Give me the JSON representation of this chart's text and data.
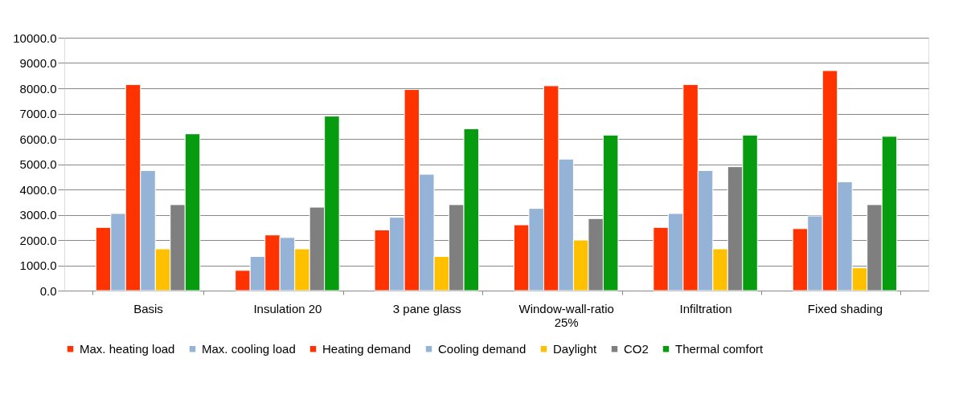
{
  "chart_data": {
    "type": "bar",
    "categories": [
      "Basis",
      "Insulation 20",
      "3 pane glass",
      "Window-wall-ratio 25%",
      "Infiltration",
      "Fixed shading"
    ],
    "series": [
      {
        "name": "Max. heating load",
        "color": "#ff3300",
        "values": [
          2500,
          800,
          2400,
          2600,
          2500,
          2450
        ]
      },
      {
        "name": "Max. cooling load",
        "color": "#95b3d7",
        "values": [
          3050,
          1350,
          2900,
          3250,
          3050,
          2950
        ]
      },
      {
        "name": "Heating demand",
        "color": "#ff3300",
        "values": [
          8150,
          2200,
          7950,
          8100,
          8150,
          8700
        ]
      },
      {
        "name": "Cooling demand",
        "color": "#95b3d7",
        "values": [
          4750,
          2100,
          4600,
          5200,
          4750,
          4300
        ]
      },
      {
        "name": "Daylight",
        "color": "#ffc000",
        "values": [
          1650,
          1650,
          1350,
          2000,
          1650,
          900
        ]
      },
      {
        "name": "CO2",
        "color": "#7f7f7f",
        "values": [
          3400,
          3300,
          3400,
          2850,
          4900,
          3400
        ]
      },
      {
        "name": "Thermal comfort",
        "color": "#079b0f",
        "values": [
          6200,
          6900,
          6400,
          6150,
          6150,
          6100
        ]
      }
    ],
    "ylim": [
      0,
      10000
    ],
    "yticks": [
      {
        "value": 0,
        "label": "0.0"
      },
      {
        "value": 1000,
        "label": "1000.0"
      },
      {
        "value": 2000,
        "label": "2000.0"
      },
      {
        "value": 3000,
        "label": "3000.0"
      },
      {
        "value": 4000,
        "label": "4000.0"
      },
      {
        "value": 5000,
        "label": "5000.0"
      },
      {
        "value": 6000,
        "label": "6000.0"
      },
      {
        "value": 7000,
        "label": "7000.0"
      },
      {
        "value": 8000,
        "label": "8000.0"
      },
      {
        "value": 9000,
        "label": "9000.0"
      },
      {
        "value": 10000,
        "label": "10000.0"
      }
    ],
    "grid": "y",
    "legend": "bottom"
  }
}
